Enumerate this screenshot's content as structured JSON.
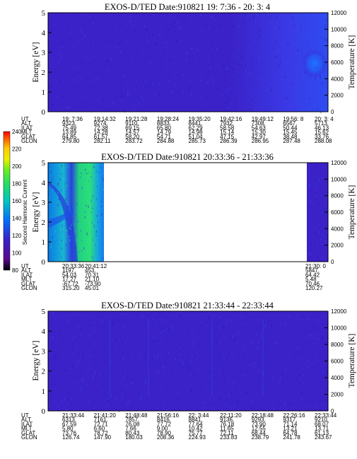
{
  "colors": {
    "background": "#3b21c8",
    "speckle": "#2a1aa8",
    "bright": "#2e4cf0"
  },
  "colorbar": {
    "label": "Second Harmonic Current",
    "ticks": [
      "240",
      "220",
      "200",
      "180",
      "160",
      "140",
      "120",
      "100",
      "80"
    ],
    "colors": [
      "#ff0000",
      "#ff6a00",
      "#ffc800",
      "#e8f000",
      "#66ee22",
      "#22dd66",
      "#00c8c0",
      "#00a8f0",
      "#0070ff",
      "#2a30e0",
      "#3b21c8",
      "#5a0a90",
      "#000000"
    ]
  },
  "row_labels": [
    "UT",
    "ALT",
    "ILAT",
    "MLT",
    "GLAT",
    "GLON"
  ],
  "panels": [
    {
      "title": "EXOS-D/TED   Date:910821  19: 7:36 - 20: 3: 4",
      "ylabel": "Energy [eV]",
      "y2label": "Temperature [K]",
      "yticks": [
        "5",
        "4",
        "3",
        "2",
        "1",
        "0"
      ],
      "y2ticks": [
        "12000",
        "10000",
        "8000",
        "6000",
        "4000",
        "2000",
        "0"
      ],
      "columns": [
        [
          "19: 7:36",
          "9323.",
          "75.49",
          "13.89",
          "64.85",
          "279.80"
        ],
        [
          "19:14:32",
          "9274.",
          "72.38",
          "14.28",
          "61.57",
          "282.11"
        ],
        [
          "19:21:28",
          "9110.",
          "69.15",
          "14.57",
          "58.20",
          "283.72"
        ],
        [
          "19:28:24",
          "8833.",
          "65.80",
          "14.79",
          "54.71",
          "284.88"
        ],
        [
          "19:35:20",
          "8441.",
          "62.29",
          "14.98",
          "51.04",
          "285.73"
        ],
        [
          "19:42:16",
          "7932.",
          "58.58",
          "15.14",
          "47.15",
          "286.39"
        ],
        [
          "19:49:12",
          "7308.",
          "54.63",
          "15.30",
          "42.97",
          "286.95"
        ],
        [
          "19:56: 8",
          "6567.",
          "50.44",
          "15.45",
          "38.48",
          "287.48"
        ],
        [
          "20: 3: 4",
          "5713.",
          "46.13",
          "15.62",
          "33.76",
          "288.08"
        ]
      ]
    },
    {
      "title": "EXOS-D/TED   Date:910821  20:33:36 - 21:33:36",
      "ylabel": "Energy [eV]",
      "y2label": "Temperature [K]",
      "yticks": [
        "5",
        "4",
        "3",
        "2",
        "1",
        "0"
      ],
      "y2ticks": [
        "12000",
        "10000",
        "8000",
        "6000",
        "4000",
        "2000",
        "0"
      ],
      "columns": [
        [
          "20:33:36",
          "1197.",
          "54.03",
          "17.27",
          "-67.72",
          "315.20"
        ],
        [
          "20:41:12",
          "453.",
          "70.31",
          "21.10",
          "-73.90",
          "45.01"
        ],
        [
          "21:30: 0",
          "5847.",
          "64.42",
          "5.48",
          "70.46",
          "120.27"
        ]
      ]
    },
    {
      "title": "EXOS-D/TED   Date:910821  21:33:44 - 22:33:44",
      "ylabel": "Energy [eV]",
      "y2label": "Temperature [K]",
      "yticks": [
        "5",
        "4",
        "3",
        "2",
        "1",
        "0"
      ],
      "y2ticks": [
        "12000",
        "10000",
        "8000",
        "6000",
        "4000",
        "2000",
        "0"
      ],
      "columns": [
        [
          "21:33:44",
          "6313.",
          "67.59",
          "5.80",
          "73.76",
          "126.74"
        ],
        [
          "21:41:20",
          "7161.",
          "72.71",
          "6.60",
          "78.72",
          "147.90"
        ],
        [
          "21:48:48",
          "7857.",
          "76.08",
          "7.66",
          "80.43",
          "180.03"
        ],
        [
          "21:56:16",
          "8416.",
          "77.72",
          "9.00",
          "78.90",
          "208.36"
        ],
        [
          "22: 3:44",
          "8841.",
          "77.64",
          "10.42",
          "75.77",
          "224.93"
        ],
        [
          "22:11:20",
          "9136.",
          "76.18",
          "11.65",
          "72.11",
          "233.83"
        ],
        [
          "22:18:48",
          "9293.",
          "73.90",
          "12.55",
          "68.44",
          "238.79"
        ],
        [
          "22:26:16",
          "9317.",
          "71.14",
          "13.21",
          "64.78",
          "241.78"
        ],
        [
          "22:33:44",
          "9210.",
          "68.07",
          "13.71",
          "61.13",
          "243.67"
        ]
      ]
    }
  ],
  "chart_data": [
    {
      "type": "heatmap",
      "title": "EXOS-D/TED   Date:910821  19: 7:36 - 20: 3: 4",
      "xlabel": "UT",
      "ylabel": "Energy [eV]",
      "y2label": "Temperature [K]",
      "ylim": [
        0,
        5
      ],
      "y2lim": [
        0,
        12000
      ],
      "x": [
        "19: 7:36",
        "19:14:32",
        "19:21:28",
        "19:28:24",
        "19:35:20",
        "19:42:16",
        "19:49:12",
        "19:56: 8",
        "20: 3: 4"
      ],
      "colorbar": {
        "label": "Second Harmonic Current",
        "range": [
          80,
          240
        ]
      },
      "features": [
        {
          "type": "enhancement",
          "x_range": [
            "19:49:12",
            "20: 3: 4"
          ],
          "y_range": [
            1.0,
            3.3
          ],
          "level": 110
        }
      ]
    },
    {
      "type": "heatmap",
      "title": "EXOS-D/TED   Date:910821  20:33:36 - 21:33:36",
      "xlabel": "UT",
      "ylabel": "Energy [eV]",
      "y2label": "Temperature [K]",
      "ylim": [
        0,
        5
      ],
      "y2lim": [
        0,
        12000
      ],
      "x": [
        "20:33:36",
        "20:41:12",
        "21:30: 0"
      ],
      "colorbar": {
        "label": "Second Harmonic Current",
        "range": [
          80,
          240
        ]
      },
      "features": [
        {
          "type": "data_block",
          "x_range": [
            "20:33:36",
            "20:43:30"
          ],
          "y_range": [
            0,
            5
          ],
          "level": 155
        },
        {
          "type": "data_block",
          "x_range": [
            "21:30: 0",
            "21:33:36"
          ],
          "y_range": [
            0,
            5
          ],
          "level": 105
        }
      ]
    },
    {
      "type": "heatmap",
      "title": "EXOS-D/TED   Date:910821  21:33:44 - 22:33:44",
      "xlabel": "UT",
      "ylabel": "Energy [eV]",
      "y2label": "Temperature [K]",
      "ylim": [
        0,
        5
      ],
      "y2lim": [
        0,
        12000
      ],
      "x": [
        "21:33:44",
        "21:41:20",
        "21:48:48",
        "21:56:16",
        "22: 3:44",
        "22:11:20",
        "22:18:48",
        "22:26:16",
        "22:33:44"
      ],
      "colorbar": {
        "label": "Second Harmonic Current",
        "range": [
          80,
          240
        ]
      },
      "features": []
    }
  ]
}
